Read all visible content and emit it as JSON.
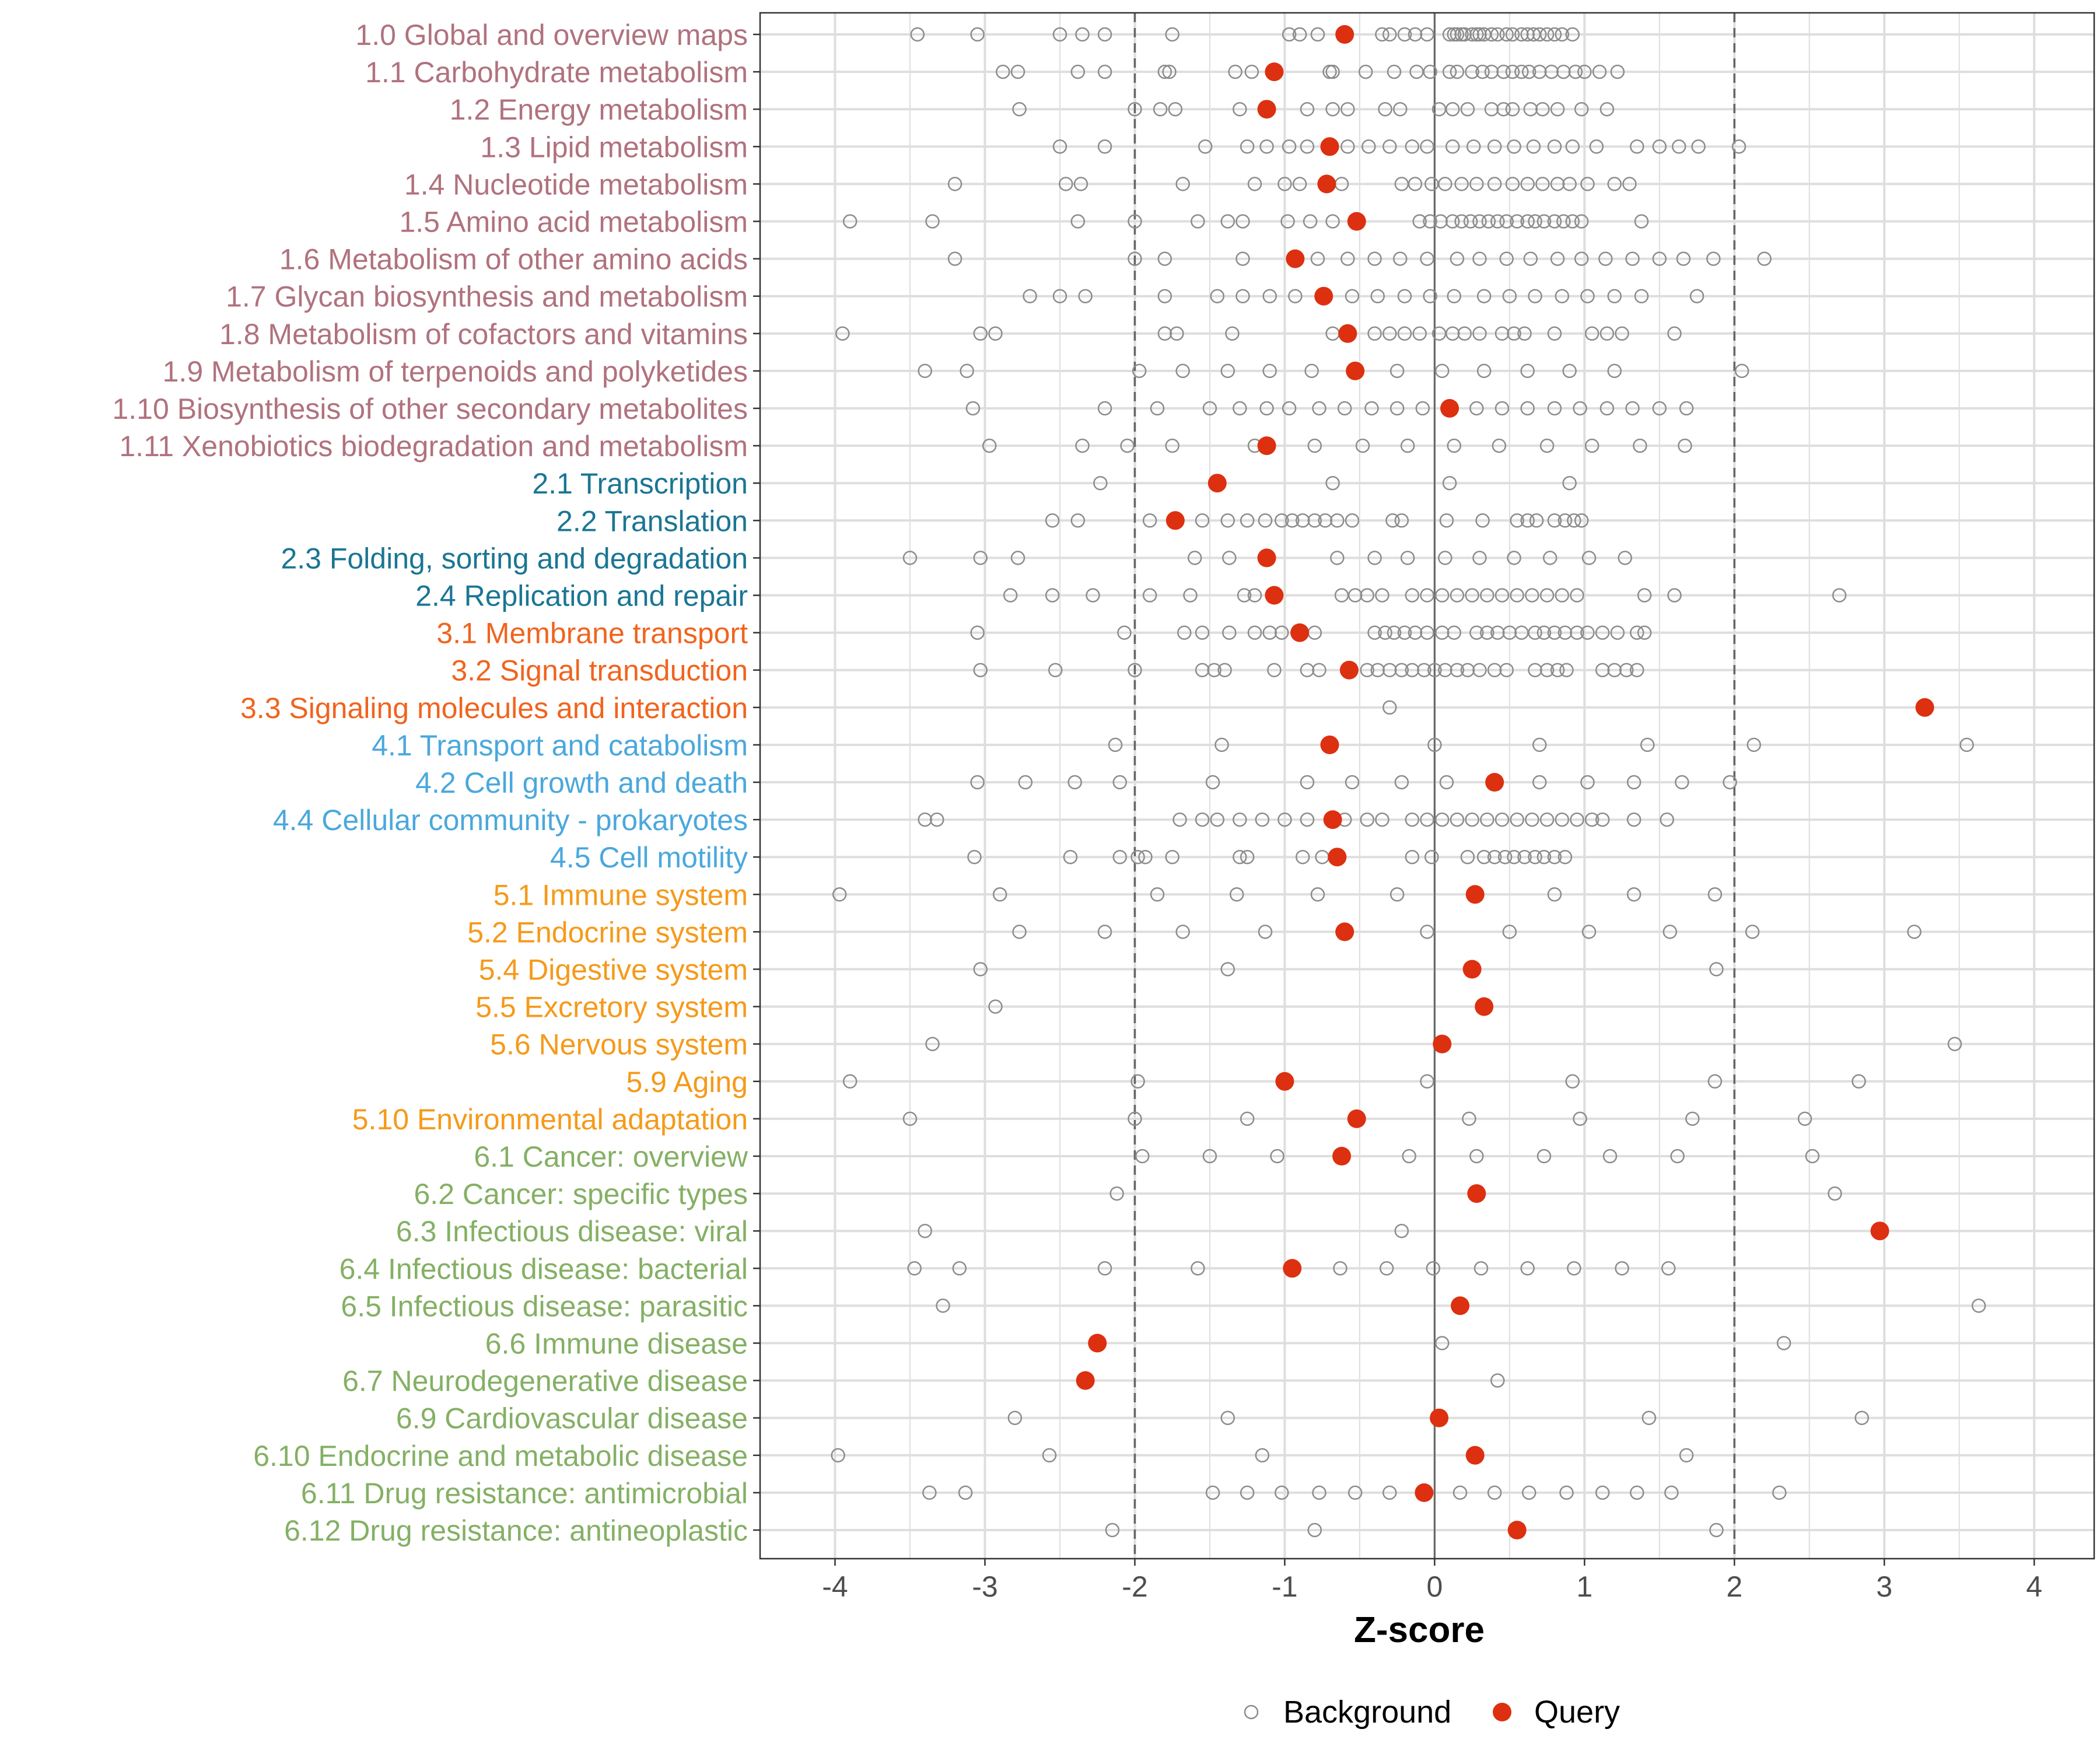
{
  "chart_data": {
    "type": "scatter",
    "title": "",
    "xlabel": "Z-score",
    "ylabel": "",
    "xlim": [
      -4.5,
      4.4
    ],
    "xticks": [
      -4,
      -3,
      -2,
      -1,
      0,
      1,
      2,
      3,
      4
    ],
    "reference_lines": {
      "solid": [
        0
      ],
      "dashed": [
        -2,
        2
      ]
    },
    "grid": true,
    "legend": {
      "position": "bottom",
      "entries": [
        {
          "name": "Background",
          "marker": "open-circle",
          "color": "#8c8c8c"
        },
        {
          "name": "Query",
          "marker": "filled-circle",
          "color": "#dc3010"
        }
      ]
    },
    "group_colors": {
      "1": "#b0727e",
      "2": "#1a7693",
      "3": "#f0641e",
      "4": "#4aa8dc",
      "5": "#f59a1a",
      "6": "#84b064"
    },
    "categories": [
      {
        "label": "1.0 Global and overview maps",
        "group": "1",
        "query": -0.6,
        "background": [
          -3.45,
          -3.05,
          -2.5,
          -2.35,
          -2.2,
          -1.75,
          -0.97,
          -0.9,
          -0.78,
          -0.35,
          -0.3,
          -0.2,
          -0.13,
          -0.05,
          0.1,
          0.13,
          0.15,
          0.18,
          0.2,
          0.25,
          0.28,
          0.3,
          0.33,
          0.38,
          0.42,
          0.48,
          0.52,
          0.58,
          0.62,
          0.66,
          0.7,
          0.75,
          0.8,
          0.85,
          0.92
        ]
      },
      {
        "label": "1.1 Carbohydrate metabolism",
        "group": "1",
        "query": -1.07,
        "background": [
          -2.88,
          -2.78,
          -2.38,
          -2.2,
          -1.8,
          -1.77,
          -1.33,
          -1.22,
          -0.7,
          -0.68,
          -0.46,
          -0.27,
          -0.12,
          -0.03,
          0.1,
          0.15,
          0.25,
          0.32,
          0.38,
          0.46,
          0.52,
          0.58,
          0.63,
          0.7,
          0.78,
          0.86,
          0.94,
          1.0,
          1.1,
          1.22
        ]
      },
      {
        "label": "1.2 Energy metabolism",
        "group": "1",
        "query": -1.12,
        "background": [
          -2.77,
          -2.0,
          -1.83,
          -1.73,
          -1.3,
          -0.85,
          -0.68,
          -0.58,
          -0.33,
          -0.23,
          0.03,
          0.12,
          0.22,
          0.38,
          0.46,
          0.52,
          0.64,
          0.72,
          0.82,
          0.98,
          1.15
        ]
      },
      {
        "label": "1.3 Lipid metabolism",
        "group": "1",
        "query": -0.7,
        "background": [
          -2.5,
          -2.2,
          -1.53,
          -1.25,
          -1.12,
          -0.97,
          -0.85,
          -0.58,
          -0.44,
          -0.3,
          -0.15,
          -0.05,
          0.12,
          0.26,
          0.4,
          0.53,
          0.66,
          0.8,
          0.92,
          1.08,
          1.35,
          1.5,
          1.63,
          1.76,
          2.03
        ]
      },
      {
        "label": "1.4 Nucleotide metabolism",
        "group": "1",
        "query": -0.72,
        "background": [
          -3.2,
          -2.46,
          -2.36,
          -1.68,
          -1.2,
          -1.0,
          -0.9,
          -0.62,
          -0.22,
          -0.13,
          -0.02,
          0.07,
          0.18,
          0.28,
          0.4,
          0.52,
          0.62,
          0.72,
          0.82,
          0.9,
          1.02,
          1.2,
          1.3
        ]
      },
      {
        "label": "1.5 Amino acid metabolism",
        "group": "1",
        "query": -0.52,
        "background": [
          -3.9,
          -3.35,
          -2.38,
          -2.0,
          -1.58,
          -1.38,
          -1.28,
          -0.98,
          -0.83,
          -0.68,
          -0.1,
          -0.03,
          0.04,
          0.12,
          0.18,
          0.24,
          0.3,
          0.36,
          0.42,
          0.48,
          0.55,
          0.62,
          0.67,
          0.73,
          0.8,
          0.86,
          0.92,
          0.98,
          1.38
        ]
      },
      {
        "label": "1.6 Metabolism of other amino acids",
        "group": "1",
        "query": -0.93,
        "background": [
          -3.2,
          -2.0,
          -1.8,
          -1.28,
          -0.78,
          -0.58,
          -0.4,
          -0.23,
          -0.05,
          0.15,
          0.3,
          0.48,
          0.64,
          0.82,
          0.98,
          1.14,
          1.32,
          1.5,
          1.66,
          1.86,
          2.2
        ]
      },
      {
        "label": "1.7 Glycan biosynthesis and metabolism",
        "group": "1",
        "query": -0.74,
        "background": [
          -2.7,
          -2.5,
          -2.33,
          -1.8,
          -1.45,
          -1.28,
          -1.1,
          -0.93,
          -0.55,
          -0.38,
          -0.2,
          -0.03,
          0.13,
          0.33,
          0.5,
          0.67,
          0.85,
          1.02,
          1.2,
          1.38,
          1.75
        ]
      },
      {
        "label": "1.8 Metabolism of cofactors and vitamins",
        "group": "1",
        "query": -0.58,
        "background": [
          -3.95,
          -3.03,
          -2.93,
          -1.8,
          -1.72,
          -1.35,
          -0.68,
          -0.4,
          -0.3,
          -0.2,
          -0.1,
          0.03,
          0.12,
          0.2,
          0.3,
          0.45,
          0.53,
          0.6,
          0.8,
          1.05,
          1.15,
          1.25,
          1.6
        ]
      },
      {
        "label": "1.9 Metabolism of terpenoids and polyketides",
        "group": "1",
        "query": -0.53,
        "background": [
          -3.4,
          -3.12,
          -1.97,
          -1.68,
          -1.38,
          -1.1,
          -0.82,
          -0.25,
          0.05,
          0.33,
          0.62,
          0.9,
          1.2,
          2.05
        ]
      },
      {
        "label": "1.10 Biosynthesis of other secondary metabolites",
        "group": "1",
        "query": 0.1,
        "background": [
          -3.08,
          -2.2,
          -1.85,
          -1.5,
          -1.3,
          -1.12,
          -0.97,
          -0.77,
          -0.6,
          -0.42,
          -0.25,
          -0.08,
          0.28,
          0.45,
          0.62,
          0.8,
          0.97,
          1.15,
          1.32,
          1.5,
          1.68
        ]
      },
      {
        "label": "1.11 Xenobiotics biodegradation and metabolism",
        "group": "1",
        "query": -1.12,
        "background": [
          -2.97,
          -2.35,
          -2.05,
          -1.75,
          -1.2,
          -0.8,
          -0.48,
          -0.18,
          0.13,
          0.43,
          0.75,
          1.05,
          1.37,
          1.67
        ]
      },
      {
        "label": "2.1 Transcription",
        "group": "2",
        "query": -1.45,
        "background": [
          -2.23,
          -0.68,
          0.1,
          0.9
        ]
      },
      {
        "label": "2.2 Translation",
        "group": "2",
        "query": -1.73,
        "background": [
          -2.55,
          -2.38,
          -1.9,
          -1.55,
          -1.38,
          -1.25,
          -1.13,
          -1.02,
          -0.95,
          -0.88,
          -0.8,
          -0.73,
          -0.65,
          -0.55,
          -0.28,
          -0.22,
          0.08,
          0.32,
          0.55,
          0.62,
          0.68,
          0.8,
          0.87,
          0.93,
          0.98
        ]
      },
      {
        "label": "2.3 Folding, sorting and degradation",
        "group": "2",
        "query": -1.12,
        "background": [
          -3.5,
          -3.03,
          -2.78,
          -1.6,
          -1.37,
          -0.65,
          -0.4,
          -0.18,
          0.07,
          0.3,
          0.53,
          0.77,
          1.03,
          1.27
        ]
      },
      {
        "label": "2.4 Replication and repair",
        "group": "2",
        "query": -1.07,
        "background": [
          -2.83,
          -2.55,
          -2.28,
          -1.9,
          -1.63,
          -1.27,
          -1.2,
          -0.62,
          -0.53,
          -0.45,
          -0.35,
          -0.15,
          -0.05,
          0.05,
          0.15,
          0.25,
          0.35,
          0.45,
          0.55,
          0.65,
          0.75,
          0.85,
          0.95,
          1.4,
          1.6,
          2.7
        ]
      },
      {
        "label": "3.1 Membrane transport",
        "group": "3",
        "query": -0.9,
        "background": [
          -3.05,
          -2.07,
          -1.67,
          -1.55,
          -1.37,
          -1.2,
          -1.1,
          -1.02,
          -0.8,
          -0.4,
          -0.33,
          -0.27,
          -0.2,
          -0.13,
          -0.05,
          0.05,
          0.13,
          0.28,
          0.35,
          0.42,
          0.5,
          0.58,
          0.67,
          0.73,
          0.8,
          0.87,
          0.95,
          1.02,
          1.12,
          1.22,
          1.35,
          1.4
        ]
      },
      {
        "label": "3.2 Signal transduction",
        "group": "3",
        "query": -0.57,
        "background": [
          -3.03,
          -2.53,
          -2.0,
          -1.55,
          -1.47,
          -1.4,
          -1.07,
          -0.85,
          -0.77,
          -0.45,
          -0.38,
          -0.3,
          -0.22,
          -0.15,
          -0.07,
          0.0,
          0.07,
          0.15,
          0.22,
          0.3,
          0.4,
          0.48,
          0.67,
          0.75,
          0.82,
          0.88,
          1.12,
          1.2,
          1.28,
          1.35
        ]
      },
      {
        "label": "3.3 Signaling molecules and interaction",
        "group": "3",
        "query": 3.27,
        "background": [
          -0.3
        ]
      },
      {
        "label": "4.1 Transport and catabolism",
        "group": "4",
        "query": -0.7,
        "background": [
          -2.13,
          -1.42,
          0.0,
          0.7,
          1.42,
          2.13,
          3.55
        ]
      },
      {
        "label": "4.2 Cell growth and death",
        "group": "4",
        "query": 0.4,
        "background": [
          -3.05,
          -2.73,
          -2.4,
          -2.1,
          -1.48,
          -0.85,
          -0.55,
          -0.22,
          0.08,
          0.7,
          1.02,
          1.33,
          1.65,
          1.97
        ]
      },
      {
        "label": "4.4 Cellular community - prokaryotes",
        "group": "4",
        "query": -0.68,
        "background": [
          -3.4,
          -3.32,
          -1.7,
          -1.55,
          -1.45,
          -1.3,
          -1.15,
          -1.0,
          -0.85,
          -0.6,
          -0.45,
          -0.35,
          -0.15,
          -0.05,
          0.05,
          0.15,
          0.25,
          0.35,
          0.45,
          0.55,
          0.65,
          0.75,
          0.85,
          0.95,
          1.05,
          1.12,
          1.33,
          1.55
        ]
      },
      {
        "label": "4.5 Cell motility",
        "group": "4",
        "query": -0.65,
        "background": [
          -3.07,
          -2.43,
          -2.1,
          -1.98,
          -1.93,
          -1.75,
          -1.3,
          -1.25,
          -0.88,
          -0.75,
          -0.15,
          -0.02,
          0.22,
          0.33,
          0.4,
          0.47,
          0.53,
          0.6,
          0.67,
          0.73,
          0.8,
          0.87
        ]
      },
      {
        "label": "5.1 Immune system",
        "group": "5",
        "query": 0.27,
        "background": [
          -3.97,
          -2.9,
          -1.85,
          -1.32,
          -0.78,
          -0.25,
          0.8,
          1.33,
          1.87
        ]
      },
      {
        "label": "5.2 Endocrine system",
        "group": "5",
        "query": -0.6,
        "background": [
          -2.77,
          -2.2,
          -1.68,
          -1.13,
          -0.05,
          0.5,
          1.03,
          1.57,
          2.12,
          3.2
        ]
      },
      {
        "label": "5.4 Digestive system",
        "group": "5",
        "query": 0.25,
        "background": [
          -3.03,
          -1.38,
          1.88
        ]
      },
      {
        "label": "5.5 Excretory system",
        "group": "5",
        "query": 0.33,
        "background": [
          -2.93
        ]
      },
      {
        "label": "5.6 Nervous system",
        "group": "5",
        "query": 0.05,
        "background": [
          -3.35,
          3.47
        ]
      },
      {
        "label": "5.9 Aging",
        "group": "5",
        "query": -1.0,
        "background": [
          -3.9,
          -1.98,
          -0.05,
          0.92,
          1.87,
          2.83
        ]
      },
      {
        "label": "5.10 Environmental adaptation",
        "group": "5",
        "query": -0.52,
        "background": [
          -3.5,
          -2.0,
          -1.25,
          0.23,
          0.97,
          1.72,
          2.47
        ]
      },
      {
        "label": "6.1 Cancer: overview",
        "group": "6",
        "query": -0.62,
        "background": [
          -1.95,
          -1.5,
          -1.05,
          -0.17,
          0.28,
          0.73,
          1.17,
          1.62,
          2.52
        ]
      },
      {
        "label": "6.2 Cancer: specific types",
        "group": "6",
        "query": 0.28,
        "background": [
          -2.12,
          2.67
        ]
      },
      {
        "label": "6.3 Infectious disease: viral",
        "group": "6",
        "query": 2.97,
        "background": [
          -3.4,
          -0.22
        ]
      },
      {
        "label": "6.4 Infectious disease: bacterial",
        "group": "6",
        "query": -0.95,
        "background": [
          -3.47,
          -3.17,
          -2.2,
          -1.58,
          -0.63,
          -0.32,
          -0.01,
          0.31,
          0.62,
          0.93,
          1.25,
          1.56
        ]
      },
      {
        "label": "6.5 Infectious disease: parasitic",
        "group": "6",
        "query": 0.17,
        "background": [
          -3.28,
          3.63
        ]
      },
      {
        "label": "6.6 Immune disease",
        "group": "6",
        "query": -2.25,
        "background": [
          0.05,
          2.33
        ]
      },
      {
        "label": "6.7 Neurodegenerative disease",
        "group": "6",
        "query": -2.33,
        "background": [
          0.42
        ]
      },
      {
        "label": "6.9 Cardiovascular disease",
        "group": "6",
        "query": 0.03,
        "background": [
          -2.8,
          -1.38,
          1.43,
          2.85
        ]
      },
      {
        "label": "6.10 Endocrine and metabolic disease",
        "group": "6",
        "query": 0.27,
        "background": [
          -3.98,
          -2.57,
          -1.15,
          1.68
        ]
      },
      {
        "label": "6.11 Drug resistance: antimicrobial",
        "group": "6",
        "query": -0.07,
        "background": [
          -3.37,
          -3.13,
          -1.48,
          -1.25,
          -1.02,
          -0.77,
          -0.53,
          -0.3,
          0.17,
          0.4,
          0.63,
          0.88,
          1.12,
          1.35,
          1.58,
          2.3
        ]
      },
      {
        "label": "6.12 Drug resistance: antineoplastic",
        "group": "6",
        "query": 0.55,
        "background": [
          -2.15,
          -0.8,
          1.88
        ]
      }
    ]
  }
}
